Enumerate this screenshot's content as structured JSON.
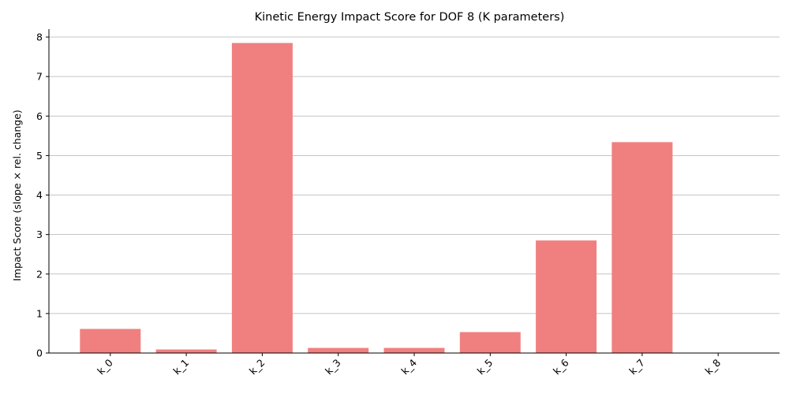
{
  "chart_data": {
    "type": "bar",
    "title": "Kinetic Energy Impact Score for DOF 8 (K parameters)",
    "xlabel": "",
    "ylabel": "Impact Score (slope × rel. change)",
    "categories": [
      "k_0",
      "k_1",
      "k_2",
      "k_3",
      "k_4",
      "k_5",
      "k_6",
      "k_7",
      "k_8"
    ],
    "values": [
      0.61,
      0.09,
      7.85,
      0.13,
      0.13,
      0.53,
      2.85,
      5.34,
      0.0
    ],
    "ylim": [
      0,
      8.2
    ],
    "yticks": [
      0,
      1,
      2,
      3,
      4,
      5,
      6,
      7,
      8
    ],
    "grid": "y",
    "x_tick_rotation": 45,
    "colors": {
      "bar": "#f08080",
      "grid": "#b0b0b0",
      "axis": "#000000"
    }
  }
}
